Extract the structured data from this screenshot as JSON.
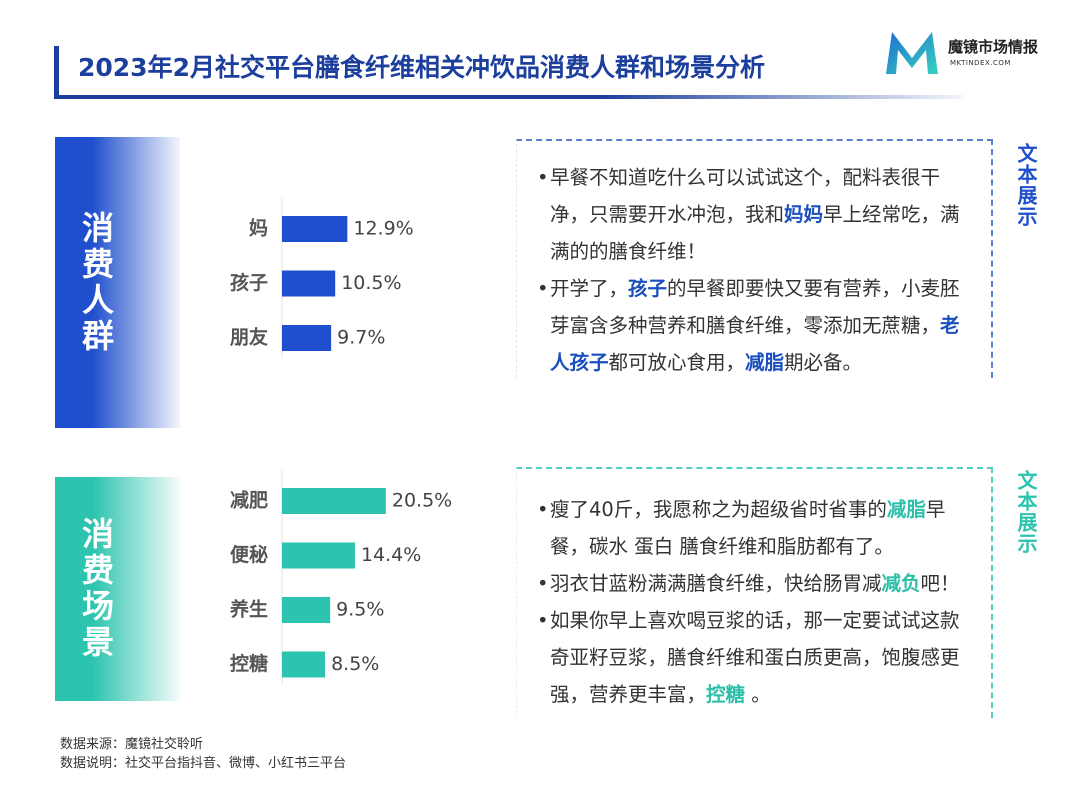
{
  "title": "2023年2月社交平台膳食纤维相关冲饮品消费人群和场景分析",
  "logo": {
    "name": "魔镜市场情报",
    "url": "MKTINDEX.COM"
  },
  "chart_data": [
    {
      "type": "bar",
      "orientation": "horizontal",
      "label": "消费人群",
      "color": "#1f4fcc",
      "categories": [
        "妈",
        "孩子",
        "朋友"
      ],
      "values": [
        12.9,
        10.5,
        9.7
      ],
      "value_labels": [
        "12.9%",
        "10.5%",
        "9.7%"
      ],
      "xlim": [
        0,
        30
      ]
    },
    {
      "type": "bar",
      "orientation": "horizontal",
      "label": "消费场景",
      "color": "#2cc4ae",
      "categories": [
        "减肥",
        "便秘",
        "养生",
        "控糖"
      ],
      "values": [
        20.5,
        14.4,
        9.5,
        8.5
      ],
      "value_labels": [
        "20.5%",
        "14.4%",
        "9.5%",
        "8.5%"
      ],
      "xlim": [
        0,
        30
      ]
    }
  ],
  "panels": [
    {
      "tag": "文本展示",
      "quotes": [
        [
          "早餐不知道吃什么可以试试这个，配料表很干净，只需要开水冲泡，我和",
          {
            "text": "妈妈",
            "strong": true
          },
          "早上经常吃，满满的的膳食纤维！"
        ],
        [
          "开学了，",
          {
            "text": "孩子",
            "strong": true
          },
          "的早餐即要快又要有营养，小麦胚芽富含多种营养和膳食纤维，零添加无蔗糖，",
          {
            "text": "老人孩子",
            "strong": true
          },
          "都可放心食用，",
          {
            "text": "减脂",
            "strong": true
          },
          "期必备。"
        ]
      ]
    },
    {
      "tag": "文本展示",
      "quotes": [
        [
          "瘦了40斤，我愿称之为超级省时省事的",
          {
            "text": "减脂",
            "strong": true
          },
          "早餐，碳水 蛋白 膳食纤维和脂肪都有了。"
        ],
        [
          "羽衣甘蓝粉满满膳食纤维，快给肠胃减",
          {
            "text": "减负",
            "strong": true
          },
          "吧！"
        ],
        [
          "如果你早上喜欢喝豆浆的话，那一定要试试这款奇亚籽豆浆，膳食纤维和蛋白质更高，饱腹感更强，营养更丰富，",
          {
            "text": "控糖",
            "strong": true
          },
          " 。"
        ]
      ]
    }
  ],
  "notes": [
    "数据来源：魔镜社交聆听",
    "数据说明：社交平台指抖音、微博、小红书三平台"
  ]
}
